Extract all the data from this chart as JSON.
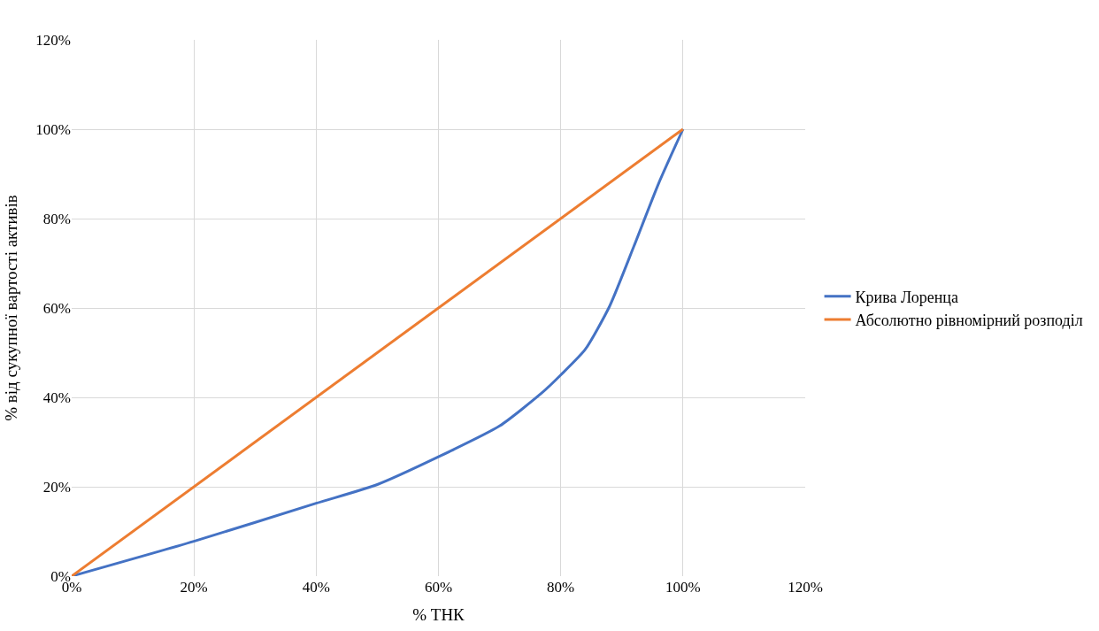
{
  "chart_data": {
    "type": "line",
    "xlabel": "% ТНК",
    "ylabel": "% від сукупної вартості активів",
    "xlim": [
      0,
      120
    ],
    "ylim": [
      0,
      120
    ],
    "xticks": [
      {
        "value": 0,
        "label": "0%"
      },
      {
        "value": 20,
        "label": "20%"
      },
      {
        "value": 40,
        "label": "40%"
      },
      {
        "value": 60,
        "label": "60%"
      },
      {
        "value": 80,
        "label": "80%"
      },
      {
        "value": 100,
        "label": "100%"
      },
      {
        "value": 120,
        "label": "120%"
      }
    ],
    "yticks": [
      {
        "value": 0,
        "label": "0%"
      },
      {
        "value": 20,
        "label": "20%"
      },
      {
        "value": 40,
        "label": "40%"
      },
      {
        "value": 60,
        "label": "60%"
      },
      {
        "value": 80,
        "label": "80%"
      },
      {
        "value": 100,
        "label": "100%"
      },
      {
        "value": 120,
        "label": "120%"
      }
    ],
    "series": [
      {
        "name": "Крива Лоренца",
        "color": "#4472c4",
        "x": [
          0,
          20,
          40,
          50,
          60,
          70,
          77,
          80,
          84,
          88,
          92,
          96,
          100
        ],
        "values": [
          0,
          7.8,
          16.3,
          20.5,
          26.7,
          33.6,
          41.1,
          45,
          50.7,
          60.4,
          73.9,
          87.8,
          100
        ]
      },
      {
        "name": "Абсолютно рівномірний розподіл",
        "color": "#ed7d31",
        "x": [
          0,
          100
        ],
        "values": [
          0,
          100
        ]
      }
    ],
    "grid": true,
    "legend": "right",
    "marker": "none",
    "line_style": "solid"
  }
}
